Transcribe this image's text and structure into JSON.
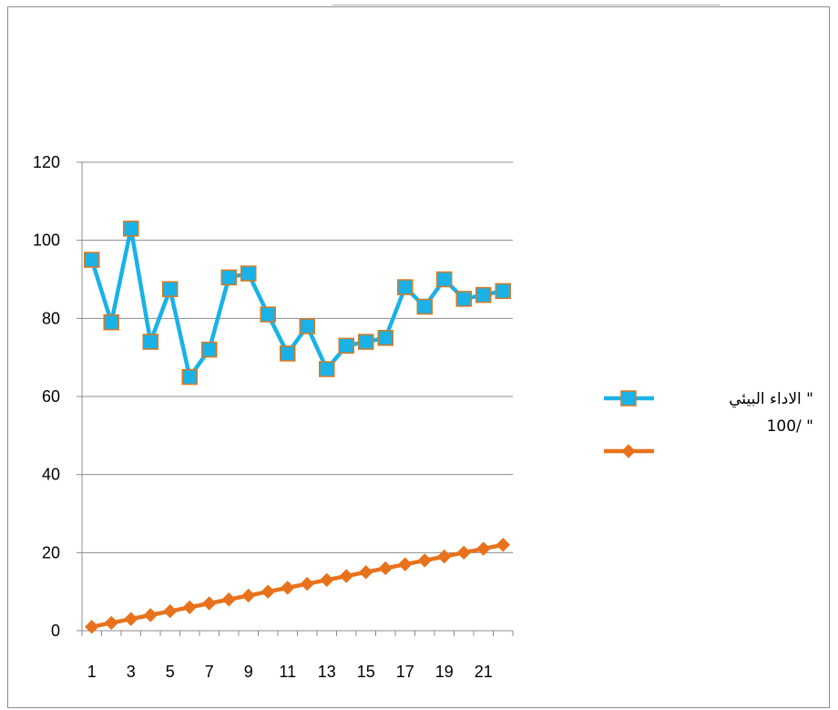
{
  "chart_data": {
    "type": "line",
    "title": "",
    "xlabel": "",
    "ylabel": "",
    "x": [
      1,
      2,
      3,
      4,
      5,
      6,
      7,
      8,
      9,
      10,
      11,
      12,
      13,
      14,
      15,
      16,
      17,
      18,
      19,
      20,
      21,
      22
    ],
    "x_tick_labels": [
      "1",
      "3",
      "5",
      "7",
      "9",
      "11",
      "13",
      "15",
      "17",
      "19",
      "21"
    ],
    "y_tick_labels": [
      "0",
      "20",
      "40",
      "60",
      "80",
      "100",
      "120"
    ],
    "ylim": [
      0,
      120
    ],
    "grid": "horizontal",
    "legend_position": "right",
    "series": [
      {
        "name": "الاداء البيئي \" 100/ \"",
        "legend_line1": "الاداء البيئي \"",
        "legend_line2": "100/ \"",
        "color": "#1ab2e6",
        "marker": "square",
        "marker_fill": "#1ab2e6",
        "marker_edge": "#d9781f",
        "values": [
          95,
          79,
          103,
          74,
          87.5,
          65,
          72,
          90.5,
          91.5,
          81,
          71,
          78,
          67,
          73,
          74,
          75,
          88,
          83,
          90,
          85,
          86,
          87
        ]
      },
      {
        "name": "",
        "color": "#e8721c",
        "marker": "diamond",
        "marker_fill": "#e8721c",
        "marker_edge": "#e8721c",
        "values": [
          1,
          2,
          3,
          4,
          5,
          6,
          7,
          8,
          9,
          10,
          11,
          12,
          13,
          14,
          15,
          16,
          17,
          18,
          19,
          20,
          21,
          22
        ]
      }
    ]
  }
}
